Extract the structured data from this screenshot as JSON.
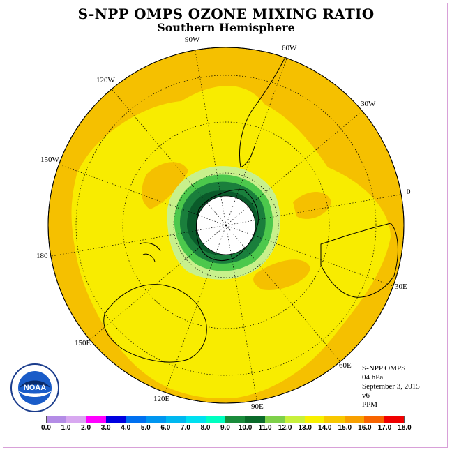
{
  "header": {
    "title": "S-NPP OMPS OZONE MIXING RATIO",
    "subtitle": "Southern Hemisphere"
  },
  "map": {
    "projection": "south-polar-stereographic",
    "longitude_labels": [
      "90W",
      "60W",
      "30W",
      "0",
      "30E",
      "60E",
      "90E",
      "120E",
      "150E",
      "180",
      "150W",
      "120W"
    ],
    "colors": {
      "ocean_fill": "#f5c000",
      "mid_fill": "#f8ec00",
      "light_green": "#c8f08c",
      "green": "#4cc84c",
      "dark_green": "#1a7f3c",
      "darker_green": "#0a5a2a",
      "pole_white": "#ffffff",
      "outline": "#000000"
    }
  },
  "info": {
    "line1": "S-NPP OMPS",
    "line2": "04 hPa",
    "line3": "September 3, 2015",
    "line4": "v6",
    "line5": "PPM"
  },
  "colorbar": {
    "labels": [
      "0.0",
      "1.0",
      "2.0",
      "3.0",
      "4.0",
      "5.0",
      "6.0",
      "7.0",
      "8.0",
      "9.0",
      "10.0",
      "11.0",
      "12.0",
      "13.0",
      "14.0",
      "15.0",
      "16.0",
      "17.0",
      "18.0"
    ],
    "colors": [
      "#b48ce6",
      "#d8a8f0",
      "#ff00ff",
      "#0000e0",
      "#0070f0",
      "#0096f0",
      "#00b8f0",
      "#00e0f0",
      "#00ffc0",
      "#1a8c3c",
      "#0a6a2a",
      "#7ed04a",
      "#c8f03c",
      "#f8f000",
      "#f8c800",
      "#f8a000",
      "#f86400",
      "#f00000",
      "#8c4a2a"
    ]
  },
  "logo": {
    "text": "NOAA",
    "icon": "noaa-logo-icon"
  }
}
